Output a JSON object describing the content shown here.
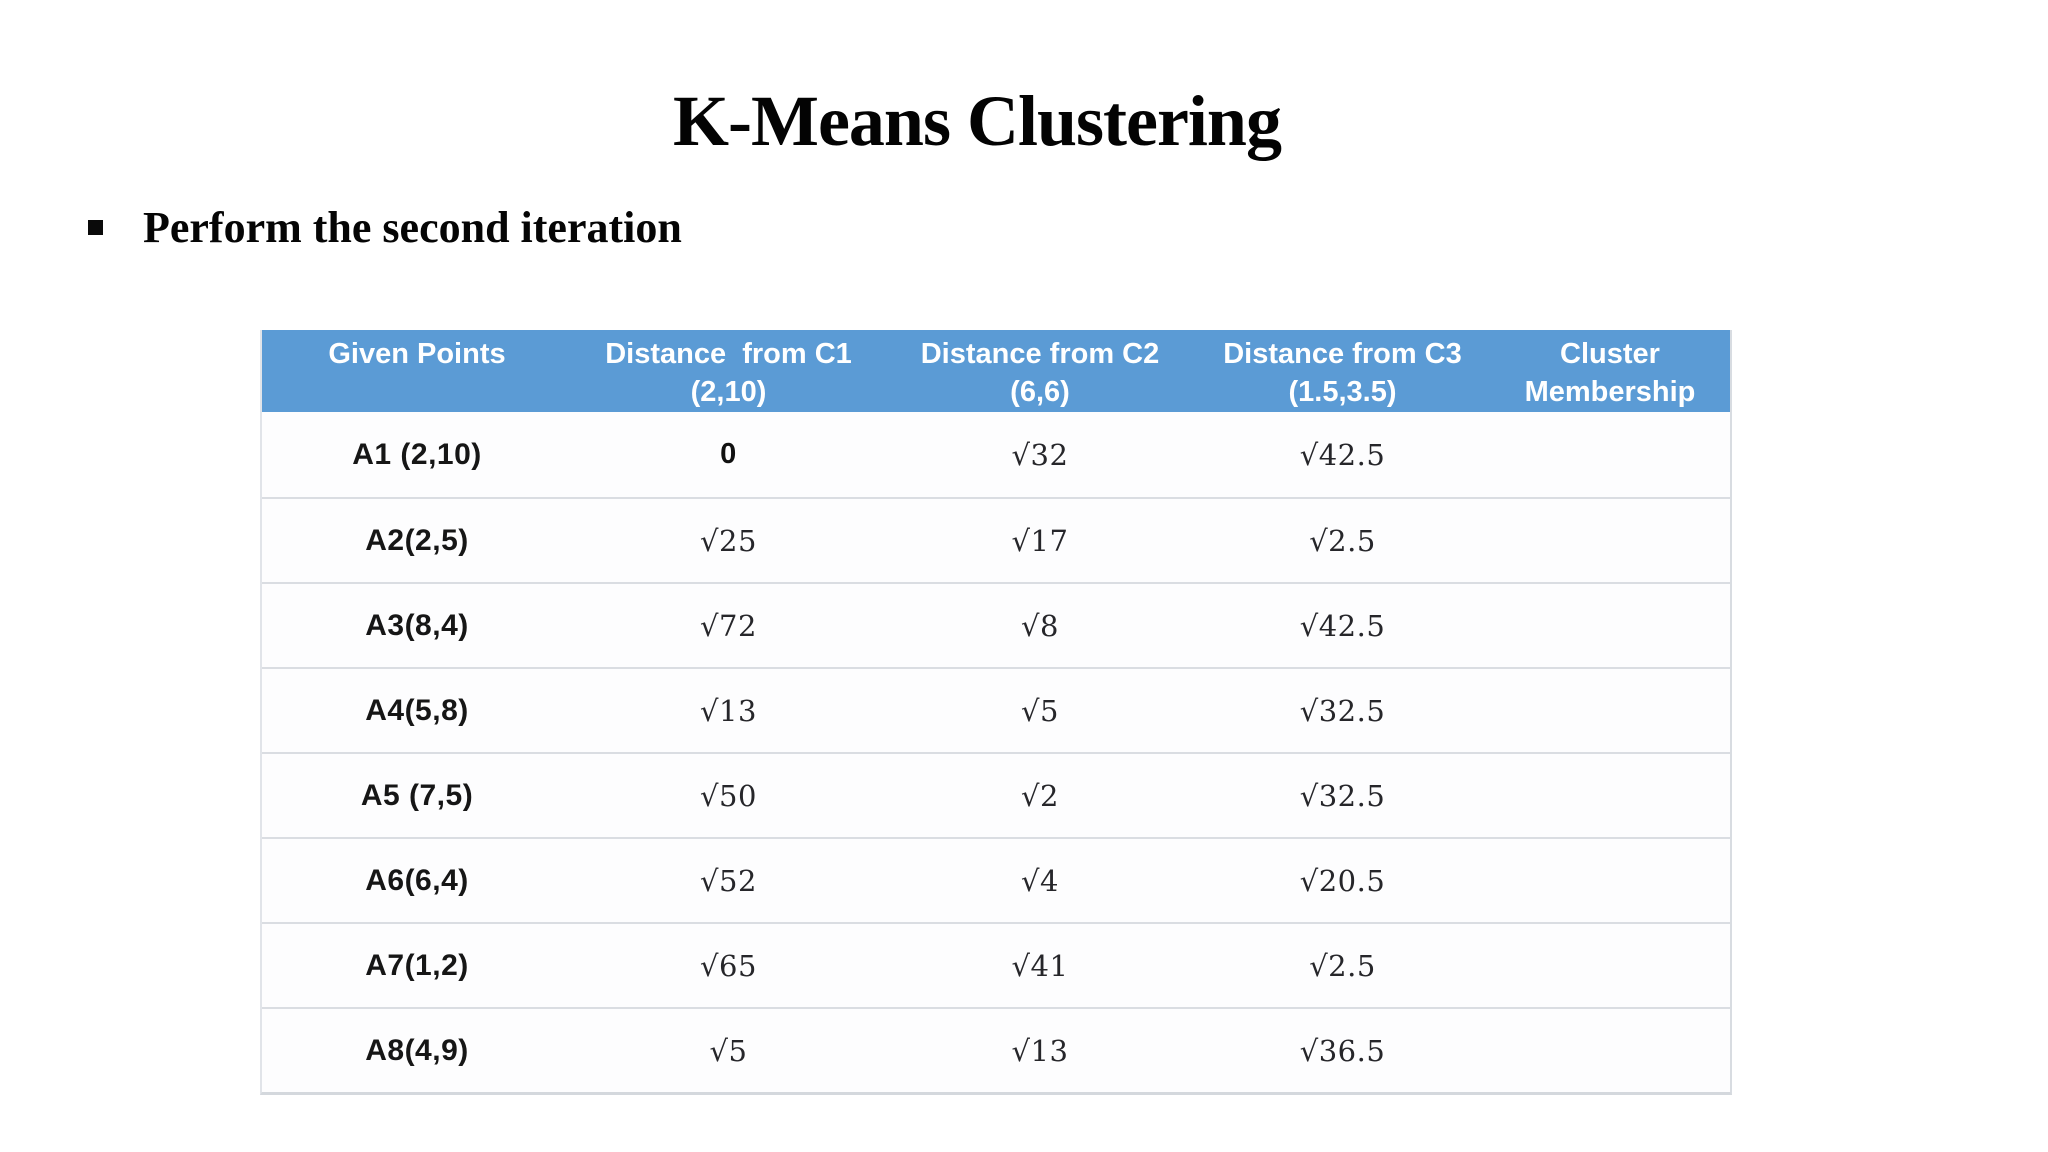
{
  "slide": {
    "title": "K-Means Clustering",
    "bullet": {
      "glyph": "square-bullet",
      "text": "Perform the second iteration"
    }
  },
  "colors": {
    "header_bg": "#5B9BD5",
    "header_text": "#FFFFFF",
    "row_separator": "#DADDE2",
    "body_text": "#161616"
  },
  "table": {
    "columns": [
      {
        "line1": "Given Points",
        "line2": ""
      },
      {
        "line1": "Distance  from C1",
        "line2": "(2,10)"
      },
      {
        "line1": "Distance from C2",
        "line2": "(6,6)"
      },
      {
        "line1": "Distance from C3",
        "line2": "(1.5,3.5)"
      },
      {
        "line1": "Cluster",
        "line2": "Membership"
      }
    ],
    "rows": [
      {
        "point": "A1 (2,10)",
        "d1": "0",
        "d2": "√32",
        "d3": "√42.5",
        "membership": ""
      },
      {
        "point": "A2(2,5)",
        "d1": "√25",
        "d2": "√17",
        "d3": "√2.5",
        "membership": ""
      },
      {
        "point": "A3(8,4)",
        "d1": "√72",
        "d2": "√8",
        "d3": "√42.5",
        "membership": ""
      },
      {
        "point": "A4(5,8)",
        "d1": "√13",
        "d2": "√5",
        "d3": "√32.5",
        "membership": ""
      },
      {
        "point": "A5 (7,5)",
        "d1": "√50",
        "d2": "√2",
        "d3": "√32.5",
        "membership": ""
      },
      {
        "point": "A6(6,4)",
        "d1": "√52",
        "d2": "√4",
        "d3": "√20.5",
        "membership": ""
      },
      {
        "point": "A7(1,2)",
        "d1": "√65",
        "d2": "√41",
        "d3": "√2.5",
        "membership": ""
      },
      {
        "point": "A8(4,9)",
        "d1": "√5",
        "d2": "√13",
        "d3": "√36.5",
        "membership": ""
      }
    ]
  }
}
